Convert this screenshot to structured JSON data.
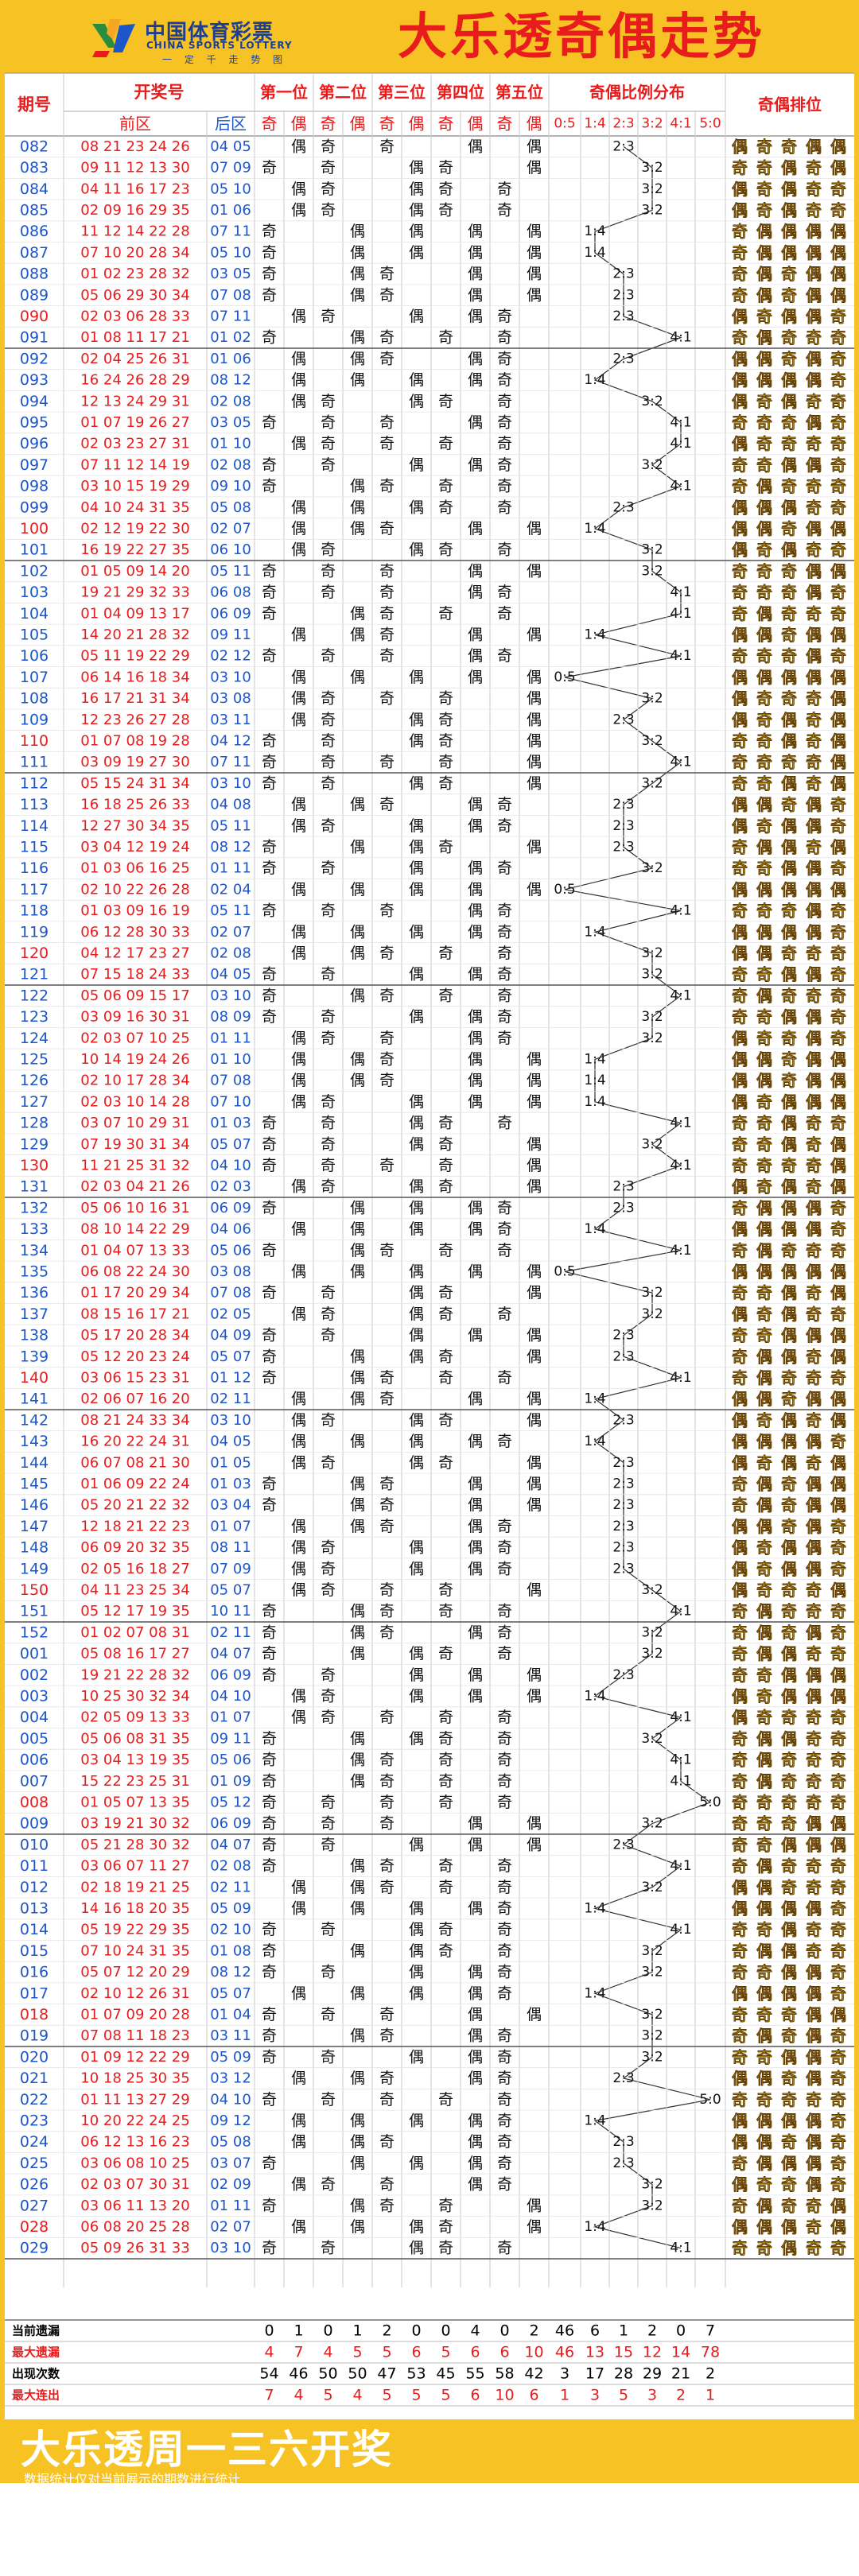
{
  "header": {
    "logo_cn": "中国体育彩票",
    "logo_en": "CHINA SPORTS LOTTERY",
    "logo_slogan": "一 定 千 走 势 图",
    "title": "大乐透奇偶走势"
  },
  "table_header": {
    "issue": "期号",
    "draw": "开奖号",
    "front": "前区",
    "back": "后区",
    "positions": [
      "第一位",
      "第二位",
      "第三位",
      "第四位",
      "第五位"
    ],
    "odd": "奇",
    "even": "偶",
    "ratio_title": "奇偶比例分布",
    "ratios": [
      "0:5",
      "1:4",
      "2:3",
      "3:2",
      "4:1",
      "5:0"
    ],
    "arrangement": "奇偶排位"
  },
  "colors": {
    "yellow": "#f7c324",
    "red": "#e81c1c",
    "blue": "#1c56c8",
    "odd_cell": "#f7c324",
    "even_cell": "#d08a1c",
    "line_black": "#1a1a1a",
    "line_blue": "#4a72c8",
    "grid": "#c8c8c8"
  },
  "chart_data": {
    "type": "table",
    "rows": [
      {
        "issue": "082",
        "front": "08 21 23 24 26",
        "back": "04 05"
      },
      {
        "issue": "083",
        "front": "09 11 12 13 30",
        "back": "07 09"
      },
      {
        "issue": "084",
        "front": "04 11 16 17 23",
        "back": "05 10"
      },
      {
        "issue": "085",
        "front": "02 09 16 29 35",
        "back": "01 06"
      },
      {
        "issue": "086",
        "front": "11 12 14 22 28",
        "back": "07 11"
      },
      {
        "issue": "087",
        "front": "07 10 20 28 34",
        "back": "05 10"
      },
      {
        "issue": "088",
        "front": "01 02 23 28 32",
        "back": "03 05"
      },
      {
        "issue": "089",
        "front": "05 06 29 30 34",
        "back": "07 08"
      },
      {
        "issue": "090",
        "front": "02 03 06 28 33",
        "back": "07 11"
      },
      {
        "issue": "091",
        "front": "01 08 11 17 21",
        "back": "01 02"
      },
      {
        "issue": "092",
        "front": "02 04 25 26 31",
        "back": "01 06"
      },
      {
        "issue": "093",
        "front": "16 24 26 28 29",
        "back": "08 12"
      },
      {
        "issue": "094",
        "front": "12 13 24 29 31",
        "back": "02 08"
      },
      {
        "issue": "095",
        "front": "01 07 19 26 27",
        "back": "03 05"
      },
      {
        "issue": "096",
        "front": "02 03 23 27 31",
        "back": "01 10"
      },
      {
        "issue": "097",
        "front": "07 11 12 14 19",
        "back": "02 08"
      },
      {
        "issue": "098",
        "front": "03 10 15 19 29",
        "back": "09 10"
      },
      {
        "issue": "099",
        "front": "04 10 24 31 35",
        "back": "05 08"
      },
      {
        "issue": "100",
        "front": "02 12 19 22 30",
        "back": "02 07"
      },
      {
        "issue": "101",
        "front": "16 19 22 27 35",
        "back": "06 10"
      },
      {
        "issue": "102",
        "front": "01 05 09 14 20",
        "back": "05 11"
      },
      {
        "issue": "103",
        "front": "19 21 29 32 33",
        "back": "06 08"
      },
      {
        "issue": "104",
        "front": "01 04 09 13 17",
        "back": "06 09"
      },
      {
        "issue": "105",
        "front": "14 20 21 28 32",
        "back": "09 11"
      },
      {
        "issue": "106",
        "front": "05 11 19 22 29",
        "back": "02 12"
      },
      {
        "issue": "107",
        "front": "06 14 16 18 34",
        "back": "03 10"
      },
      {
        "issue": "108",
        "front": "16 17 21 31 34",
        "back": "03 08"
      },
      {
        "issue": "109",
        "front": "12 23 26 27 28",
        "back": "03 11"
      },
      {
        "issue": "110",
        "front": "01 07 08 19 28",
        "back": "04 12"
      },
      {
        "issue": "111",
        "front": "03 09 19 27 30",
        "back": "07 11"
      },
      {
        "issue": "112",
        "front": "05 15 24 31 34",
        "back": "03 10"
      },
      {
        "issue": "113",
        "front": "16 18 25 26 33",
        "back": "04 08"
      },
      {
        "issue": "114",
        "front": "12 27 30 34 35",
        "back": "05 11"
      },
      {
        "issue": "115",
        "front": "03 04 12 19 24",
        "back": "08 12"
      },
      {
        "issue": "116",
        "front": "01 03 06 16 25",
        "back": "01 11"
      },
      {
        "issue": "117",
        "front": "02 10 22 26 28",
        "back": "02 04"
      },
      {
        "issue": "118",
        "front": "01 03 09 16 19",
        "back": "05 11"
      },
      {
        "issue": "119",
        "front": "06 12 28 30 33",
        "back": "02 07"
      },
      {
        "issue": "120",
        "front": "04 12 17 23 27",
        "back": "02 08"
      },
      {
        "issue": "121",
        "front": "07 15 18 24 33",
        "back": "04 05"
      },
      {
        "issue": "122",
        "front": "05 06 09 15 17",
        "back": "03 10"
      },
      {
        "issue": "123",
        "front": "03 09 16 30 31",
        "back": "08 09"
      },
      {
        "issue": "124",
        "front": "02 03 07 10 25",
        "back": "01 11"
      },
      {
        "issue": "125",
        "front": "10 14 19 24 26",
        "back": "01 10"
      },
      {
        "issue": "126",
        "front": "02 10 17 28 34",
        "back": "07 08"
      },
      {
        "issue": "127",
        "front": "02 03 10 14 28",
        "back": "07 10"
      },
      {
        "issue": "128",
        "front": "03 07 10 29 31",
        "back": "01 03"
      },
      {
        "issue": "129",
        "front": "07 19 30 31 34",
        "back": "05 07"
      },
      {
        "issue": "130",
        "front": "11 21 25 31 32",
        "back": "04 10"
      },
      {
        "issue": "131",
        "front": "02 03 04 21 26",
        "back": "02 03"
      },
      {
        "issue": "132",
        "front": "05 06 10 16 31",
        "back": "06 09"
      },
      {
        "issue": "133",
        "front": "08 10 14 22 29",
        "back": "04 06"
      },
      {
        "issue": "134",
        "front": "01 04 07 13 33",
        "back": "05 06"
      },
      {
        "issue": "135",
        "front": "06 08 22 24 30",
        "back": "03 08"
      },
      {
        "issue": "136",
        "front": "01 17 20 29 34",
        "back": "07 08"
      },
      {
        "issue": "137",
        "front": "08 15 16 17 21",
        "back": "02 05"
      },
      {
        "issue": "138",
        "front": "05 17 20 28 34",
        "back": "04 09"
      },
      {
        "issue": "139",
        "front": "05 12 20 23 24",
        "back": "05 07"
      },
      {
        "issue": "140",
        "front": "03 06 15 23 31",
        "back": "01 12"
      },
      {
        "issue": "141",
        "front": "02 06 07 16 20",
        "back": "02 11"
      },
      {
        "issue": "142",
        "front": "08 21 24 33 34",
        "back": "03 10"
      },
      {
        "issue": "143",
        "front": "16 20 22 24 31",
        "back": "04 05"
      },
      {
        "issue": "144",
        "front": "06 07 08 21 30",
        "back": "01 05"
      },
      {
        "issue": "145",
        "front": "01 06 09 22 24",
        "back": "01 03"
      },
      {
        "issue": "146",
        "front": "05 20 21 22 32",
        "back": "03 04"
      },
      {
        "issue": "147",
        "front": "12 18 21 22 23",
        "back": "01 07"
      },
      {
        "issue": "148",
        "front": "06 09 20 32 35",
        "back": "08 11"
      },
      {
        "issue": "149",
        "front": "02 05 16 18 27",
        "back": "07 09"
      },
      {
        "issue": "150",
        "front": "04 11 23 25 34",
        "back": "05 07"
      },
      {
        "issue": "151",
        "front": "05 12 17 19 35",
        "back": "10 11"
      },
      {
        "issue": "152",
        "front": "01 02 07 08 31",
        "back": "02 11"
      },
      {
        "issue": "001",
        "front": "05 08 16 17 27",
        "back": "04 07"
      },
      {
        "issue": "002",
        "front": "19 21 22 28 32",
        "back": "06 09"
      },
      {
        "issue": "003",
        "front": "10 25 30 32 34",
        "back": "04 10"
      },
      {
        "issue": "004",
        "front": "02 05 09 13 33",
        "back": "01 07"
      },
      {
        "issue": "005",
        "front": "05 06 08 31 35",
        "back": "09 11"
      },
      {
        "issue": "006",
        "front": "03 04 13 19 35",
        "back": "05 06"
      },
      {
        "issue": "007",
        "front": "15 22 23 25 31",
        "back": "01 09"
      },
      {
        "issue": "008",
        "front": "01 05 07 13 35",
        "back": "05 12"
      },
      {
        "issue": "009",
        "front": "03 19 21 30 32",
        "back": "06 09"
      },
      {
        "issue": "010",
        "front": "05 21 28 30 32",
        "back": "04 07"
      },
      {
        "issue": "011",
        "front": "03 06 07 11 27",
        "back": "02 08"
      },
      {
        "issue": "012",
        "front": "02 18 19 21 25",
        "back": "02 11"
      },
      {
        "issue": "013",
        "front": "14 16 18 20 35",
        "back": "05 09"
      },
      {
        "issue": "014",
        "front": "05 19 22 29 35",
        "back": "02 10"
      },
      {
        "issue": "015",
        "front": "07 10 24 31 35",
        "back": "01 08"
      },
      {
        "issue": "016",
        "front": "05 07 12 20 29",
        "back": "08 12"
      },
      {
        "issue": "017",
        "front": "02 10 12 26 31",
        "back": "05 07"
      },
      {
        "issue": "018",
        "front": "01 07 09 20 28",
        "back": "01 04"
      },
      {
        "issue": "019",
        "front": "07 08 11 18 23",
        "back": "03 11"
      },
      {
        "issue": "020",
        "front": "01 09 12 22 29",
        "back": "05 09"
      },
      {
        "issue": "021",
        "front": "10 18 25 30 35",
        "back": "03 12"
      },
      {
        "issue": "022",
        "front": "01 11 13 27 29",
        "back": "04 10"
      },
      {
        "issue": "023",
        "front": "10 20 22 24 25",
        "back": "09 12"
      },
      {
        "issue": "024",
        "front": "06 12 13 16 23",
        "back": "05 08"
      },
      {
        "issue": "025",
        "front": "03 06 08 10 25",
        "back": "03 07"
      },
      {
        "issue": "026",
        "front": "02 03 07 30 31",
        "back": "02 09"
      },
      {
        "issue": "027",
        "front": "03 06 11 13 20",
        "back": "01 11"
      },
      {
        "issue": "028",
        "front": "06 08 20 25 28",
        "back": "02 07"
      },
      {
        "issue": "029",
        "front": "05 09 26 31 33",
        "back": "03 10"
      }
    ],
    "stats": [
      {
        "label": "当前遗漏",
        "values": [
          0,
          1,
          0,
          1,
          2,
          0,
          0,
          4,
          0,
          2,
          46,
          6,
          1,
          2,
          0,
          7
        ]
      },
      {
        "label": "最大遗漏",
        "values": [
          4,
          7,
          4,
          5,
          5,
          6,
          5,
          6,
          6,
          10,
          46,
          13,
          15,
          12,
          14,
          78
        ]
      },
      {
        "label": "出现次数",
        "values": [
          54,
          46,
          50,
          50,
          47,
          53,
          45,
          55,
          58,
          42,
          3,
          17,
          28,
          29,
          21,
          2
        ]
      },
      {
        "label": "最大连出",
        "values": [
          7,
          4,
          5,
          4,
          5,
          5,
          5,
          6,
          10,
          6,
          1,
          3,
          5,
          3,
          2,
          1
        ]
      }
    ]
  },
  "footer": {
    "title": "大乐透周一三六开奖",
    "note": "数据统计仅对当前展示的期数进行统计"
  }
}
